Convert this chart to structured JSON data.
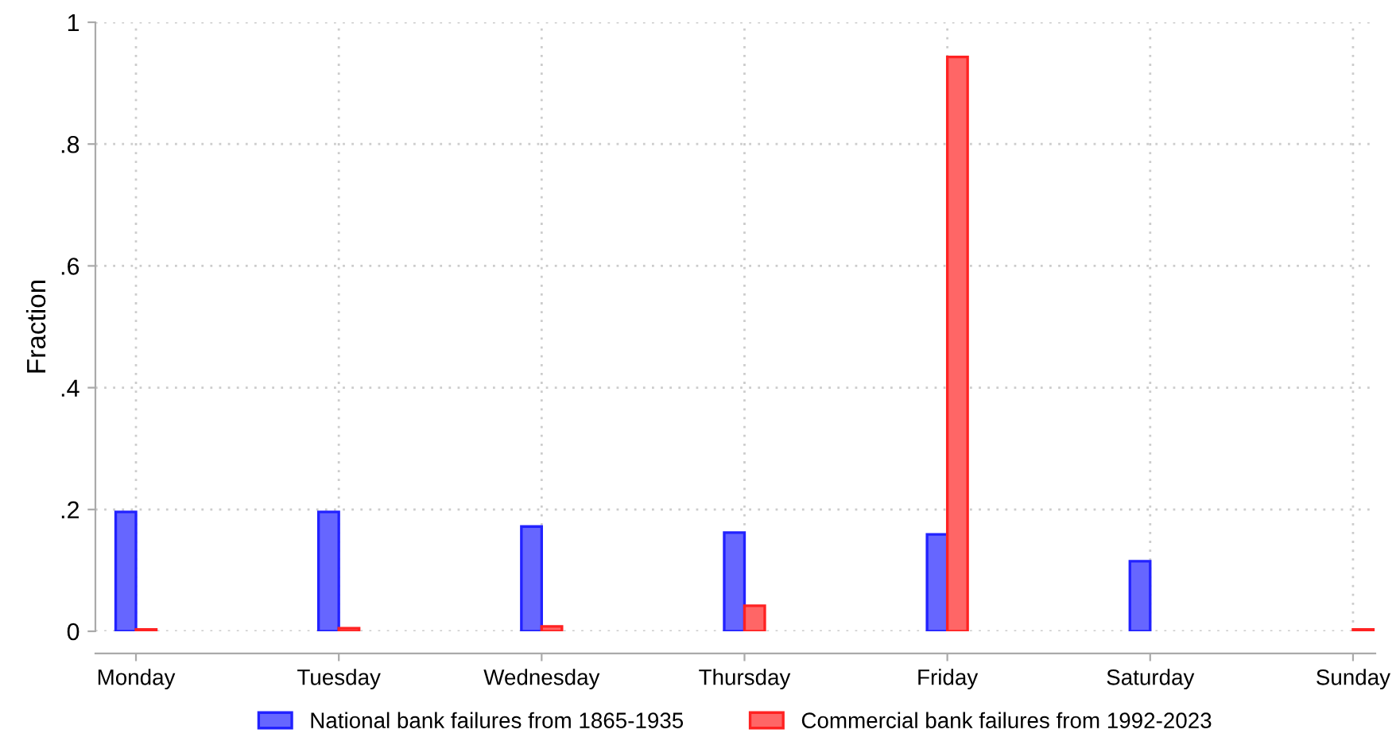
{
  "chart_data": {
    "type": "bar",
    "ylabel": "Fraction",
    "categories": [
      "Monday",
      "Tuesday",
      "Wednesday",
      "Thursday",
      "Friday",
      "Saturday",
      "Sunday"
    ],
    "series": [
      {
        "name": "National bank failures from 1865-1935",
        "color": "#6666ff",
        "values": [
          0.196,
          0.196,
          0.172,
          0.162,
          0.159,
          0.115,
          null
        ]
      },
      {
        "name": "Commercial bank failures from 1992-2023",
        "color": "#ff6666",
        "values": [
          0.003,
          0.005,
          0.008,
          0.042,
          0.943,
          null,
          0.003
        ]
      }
    ],
    "ylim": [
      0,
      1
    ],
    "yticks": [
      {
        "value": 0,
        "label": "0"
      },
      {
        "value": 0.2,
        "label": ".2"
      },
      {
        "value": 0.4,
        "label": ".4"
      },
      {
        "value": 0.6,
        "label": ".6"
      },
      {
        "value": 0.8,
        "label": ".8"
      },
      {
        "value": 1,
        "label": "1"
      }
    ],
    "grid": true,
    "legend": "bottom"
  }
}
